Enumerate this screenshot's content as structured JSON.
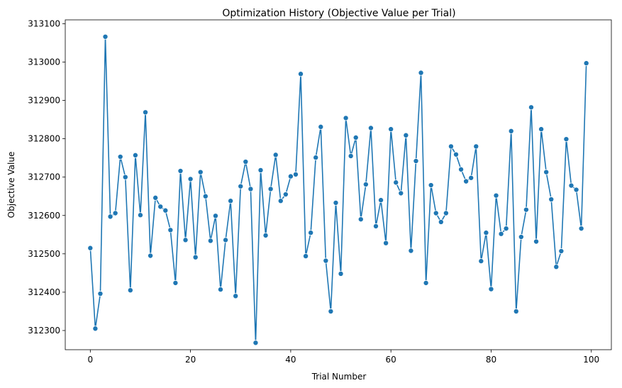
{
  "chart_data": {
    "type": "line",
    "title": "Optimization History (Objective Value per Trial)",
    "xlabel": "Trial Number",
    "ylabel": "Objective Value",
    "xlim": [
      -5,
      104
    ],
    "ylim": [
      312250,
      313110
    ],
    "xticks": [
      0,
      20,
      40,
      60,
      80,
      100
    ],
    "yticks": [
      312300,
      312400,
      312500,
      312600,
      312700,
      312800,
      312900,
      313000,
      313100
    ],
    "grid": false,
    "legend": "none",
    "marker": "circle",
    "color": "#1f77b4",
    "series": [
      {
        "x": [
          0,
          1,
          2,
          3,
          4,
          5,
          6,
          7,
          8,
          9,
          10,
          11,
          12,
          13,
          14,
          15,
          16,
          17,
          18,
          19,
          20,
          21,
          22,
          23,
          24,
          25,
          26,
          27,
          28,
          29,
          30,
          31,
          32,
          33,
          34,
          35,
          36,
          37,
          38,
          39,
          40,
          41,
          42,
          43,
          44,
          45,
          46,
          47,
          48,
          49,
          50,
          51,
          52,
          53,
          54,
          55,
          56,
          57,
          58,
          59,
          60,
          61,
          62,
          63,
          64,
          65,
          66,
          67,
          68,
          69,
          70,
          71,
          72,
          73,
          74,
          75,
          76,
          77,
          78,
          79,
          80,
          81,
          82,
          83,
          84,
          85,
          86,
          87,
          88,
          89,
          90,
          91,
          92,
          93,
          94,
          95,
          96,
          97,
          98,
          99
        ],
        "values": [
          312515,
          312305,
          312396,
          313066,
          312597,
          312606,
          312753,
          312700,
          312405,
          312757,
          312601,
          312869,
          312495,
          312646,
          312623,
          312613,
          312562,
          312424,
          312716,
          312536,
          312695,
          312491,
          312713,
          312650,
          312534,
          312599,
          312407,
          312536,
          312638,
          312390,
          312676,
          312740,
          312669,
          312268,
          312718,
          312548,
          312669,
          312758,
          312638,
          312655,
          312702,
          312707,
          312969,
          312494,
          312555,
          312751,
          312831,
          312482,
          312350,
          312633,
          312448,
          312854,
          312755,
          312803,
          312590,
          312681,
          312828,
          312572,
          312640,
          312528,
          312825,
          312686,
          312658,
          312809,
          312508,
          312742,
          312972,
          312424,
          312679,
          312606,
          312583,
          312606,
          312780,
          312759,
          312720,
          312689,
          312698,
          312780,
          312481,
          312555,
          312408,
          312652,
          312552,
          312566,
          312820,
          312350,
          312544,
          312615,
          312882,
          312532,
          312825,
          312713,
          312642,
          312466,
          312507,
          312799,
          312678,
          312667,
          312566,
          312997
        ]
      }
    ]
  }
}
